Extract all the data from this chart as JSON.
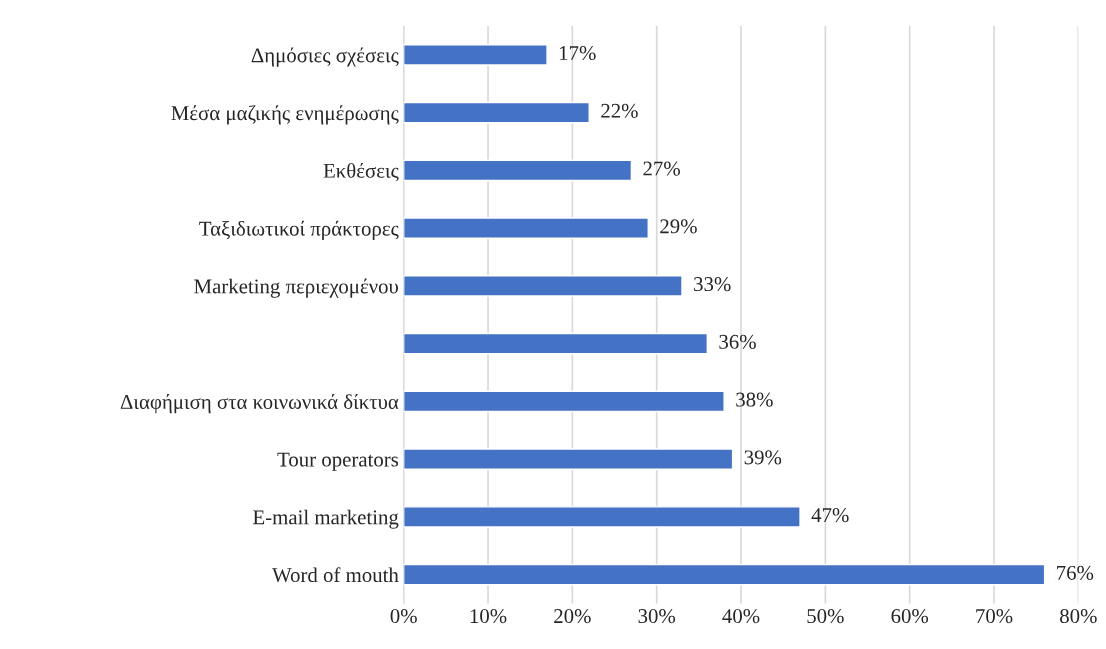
{
  "chart_data": {
    "type": "bar",
    "orientation": "horizontal",
    "categories": [
      "Δημόσιες σχέσεις",
      "Μέσα μαζικής ενημέρωσης",
      "Εκθέσεις",
      "Ταξιδιωτικοί πράκτορες",
      "Marketing περιεχομένου",
      null,
      "Διαφήμιση στα κοινωνικά δίκτυα",
      "Tour operators",
      "E-mail marketing",
      "Word of mouth"
    ],
    "values": [
      17,
      22,
      27,
      29,
      33,
      36,
      38,
      39,
      47,
      76
    ],
    "value_labels": [
      "17%",
      "22%",
      "27%",
      "29%",
      "33%",
      "36%",
      "38%",
      "39%",
      "47%",
      "76%"
    ],
    "color": "#4472c4",
    "xlim": [
      0,
      80
    ],
    "xticks": [
      {
        "value": 0,
        "label": "0%"
      },
      {
        "value": 10,
        "label": "10%"
      },
      {
        "value": 20,
        "label": "20%"
      },
      {
        "value": 30,
        "label": "30%"
      },
      {
        "value": 40,
        "label": "40%"
      },
      {
        "value": 50,
        "label": "50%"
      },
      {
        "value": 60,
        "label": "60%"
      },
      {
        "value": 70,
        "label": "70%"
      },
      {
        "value": 80,
        "label": "80%"
      }
    ],
    "grid": "x",
    "legend": false
  }
}
